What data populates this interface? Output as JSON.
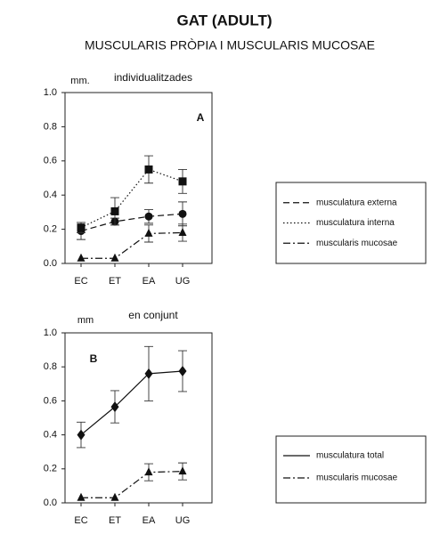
{
  "header": {
    "title": "GAT (ADULT)",
    "subtitle": "MUSCULARIS PRÒPIA I MUSCULARIS MUCOSAE"
  },
  "chart_data": [
    {
      "type": "line",
      "subtitle": "individualitzades",
      "ylabel": "mm.",
      "panel_label": "A",
      "categories": [
        "EC",
        "ET",
        "EA",
        "UG"
      ],
      "ylim": [
        0,
        1
      ],
      "yticks": [
        {
          "value": 0,
          "label": "0.0"
        },
        0.2,
        0.4,
        0.6,
        0.8,
        {
          "value": 1,
          "label": "1.0"
        }
      ],
      "series": [
        {
          "name": "musculatura externa",
          "color": "#111111",
          "dash": "dashed",
          "marker": "circle",
          "values": [
            0.19,
            0.245,
            0.275,
            0.29
          ],
          "error": [
            0.05,
            0.02,
            0.04,
            0.07
          ]
        },
        {
          "name": "musculatura interna",
          "color": "#111111",
          "dash": "dotted",
          "marker": "square",
          "values": [
            0.21,
            0.305,
            0.55,
            0.48
          ],
          "error": [
            0.03,
            0.08,
            0.08,
            0.07
          ]
        },
        {
          "name": "muscularis mucosae",
          "color": "#111111",
          "dash": "dashdot",
          "marker": "triangle",
          "values": [
            0.03,
            0.03,
            0.175,
            0.18
          ],
          "error": [
            0,
            0,
            0.05,
            0.05
          ]
        }
      ]
    },
    {
      "type": "line",
      "subtitle": "en conjunt",
      "ylabel": "mm",
      "panel_label": "B",
      "categories": [
        "EC",
        "ET",
        "EA",
        "UG"
      ],
      "ylim": [
        0,
        1
      ],
      "yticks": [
        {
          "value": 0,
          "label": "0.0"
        },
        0.2,
        0.4,
        0.6,
        0.8,
        {
          "value": 1,
          "label": "1.0"
        }
      ],
      "series": [
        {
          "name": "musculatura total",
          "color": "#111111",
          "dash": "solid",
          "marker": "diamond",
          "values": [
            0.4,
            0.565,
            0.76,
            0.775
          ],
          "error": [
            0.075,
            0.095,
            0.16,
            0.12
          ]
        },
        {
          "name": "muscularis mucosae",
          "color": "#111111",
          "dash": "dashdot",
          "marker": "triangle",
          "values": [
            0.03,
            0.03,
            0.18,
            0.185
          ],
          "error": [
            0,
            0,
            0.05,
            0.05
          ]
        }
      ]
    }
  ]
}
